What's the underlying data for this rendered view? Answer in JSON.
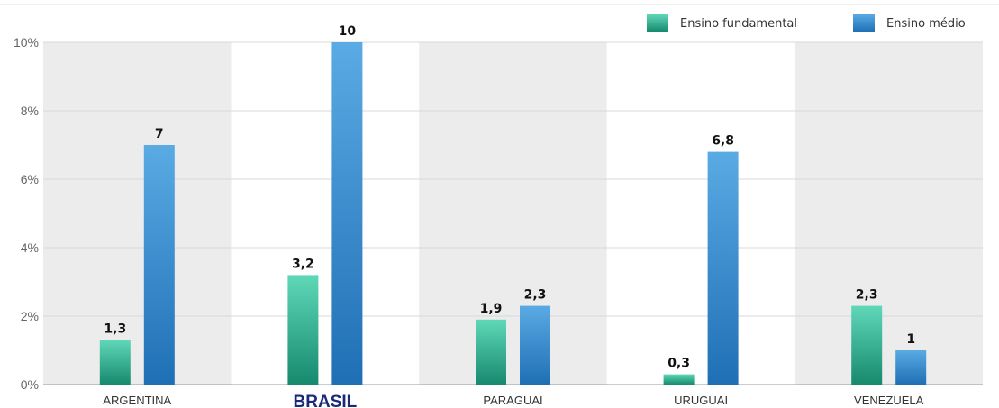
{
  "chart_data": {
    "type": "bar",
    "categories": [
      "ARGENTINA",
      "BRASIL",
      "PARAGUAI",
      "URUGUAI",
      "VENEZUELA"
    ],
    "highlight_category": "BRASIL",
    "series": [
      {
        "name": "Ensino fundamental",
        "values": [
          1.3,
          3.2,
          1.9,
          0.3,
          2.3
        ],
        "labels": [
          "1,3",
          "3,2",
          "1,9",
          "0,3",
          "2,3"
        ],
        "color_top": "#5fd8b8",
        "color_bottom": "#17896e"
      },
      {
        "name": "Ensino médio",
        "values": [
          7,
          10,
          2.3,
          6.8,
          1
        ],
        "labels": [
          "7",
          "10",
          "2,3",
          "6,8",
          "1"
        ],
        "color_top": "#5aaae4",
        "color_bottom": "#1f6fb5"
      }
    ],
    "yticks": [
      "0%",
      "2%",
      "4%",
      "6%",
      "8%",
      "10%"
    ],
    "ylim": [
      0,
      10
    ],
    "title": "",
    "xlabel": "",
    "ylabel": "",
    "grid": true,
    "legend": "top-right",
    "band_colors": [
      "#ececec",
      "#ffffff"
    ]
  }
}
